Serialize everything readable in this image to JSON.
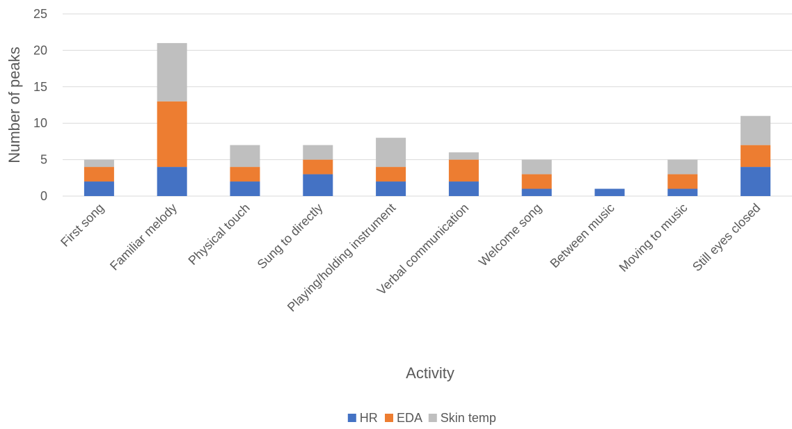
{
  "chart_data": {
    "type": "bar",
    "stacked": true,
    "title": "",
    "xlabel": "Activity",
    "ylabel": "Number of peaks",
    "ylim": [
      0,
      25
    ],
    "yticks": [
      0,
      5,
      10,
      15,
      20,
      25
    ],
    "grid": true,
    "legend_position": "bottom",
    "categories": [
      "First song",
      "Familiar melody",
      "Physical touch",
      "Sung to directly",
      "Playing/holding instrument",
      "Verbal communication",
      "Welcome song",
      "Between music",
      "Moving to music",
      "Still eyes closed"
    ],
    "series": [
      {
        "name": "HR",
        "color": "#4472c4",
        "values": [
          2,
          4,
          2,
          3,
          2,
          2,
          1,
          1,
          1,
          4
        ]
      },
      {
        "name": "EDA",
        "color": "#ed7d31",
        "values": [
          2,
          9,
          2,
          2,
          2,
          3,
          2,
          0,
          2,
          3
        ]
      },
      {
        "name": "Skin temp",
        "color": "#bfbfbf",
        "values": [
          1,
          8,
          3,
          2,
          4,
          1,
          2,
          0,
          2,
          4
        ]
      }
    ]
  }
}
